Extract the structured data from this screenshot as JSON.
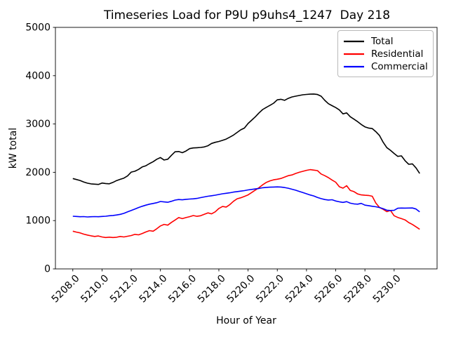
{
  "figure": {
    "title": "Timeseries Load for P9U p9uhs4_1247  Day 218",
    "xlabel": "Hour of Year",
    "ylabel": "kW total",
    "background": "#ffffff"
  },
  "legend": {
    "entries": [
      {
        "label": "Total",
        "color": "#000000"
      },
      {
        "label": "Residential",
        "color": "#ff0000"
      },
      {
        "label": "Commercial",
        "color": "#0000ff"
      }
    ]
  },
  "chart_data": {
    "type": "line",
    "title": "Timeseries Load for P9U p9uhs4_1247  Day 218",
    "xlabel": "Hour of Year",
    "ylabel": "kW total",
    "xlim": [
      5206.81,
      5232.94
    ],
    "ylim": [
      0,
      5000
    ],
    "grid": false,
    "legend_position": "upper right",
    "xticks": [
      5208,
      5210,
      5212,
      5214,
      5216,
      5218,
      5220,
      5222,
      5224,
      5226,
      5228,
      5230
    ],
    "xtick_labels": [
      "5208.0",
      "5210.0",
      "5212.0",
      "5214.0",
      "5216.0",
      "5218.0",
      "5220.0",
      "5222.0",
      "5224.0",
      "5226.0",
      "5228.0",
      "5230.0"
    ],
    "yticks": [
      0,
      1000,
      2000,
      3000,
      4000,
      5000
    ],
    "ytick_labels": [
      "0",
      "1000",
      "2000",
      "3000",
      "4000",
      "5000"
    ],
    "x": [
      5208.0,
      5208.25,
      5208.5,
      5208.75,
      5209.0,
      5209.25,
      5209.5,
      5209.75,
      5210.0,
      5210.25,
      5210.5,
      5210.75,
      5211.0,
      5211.25,
      5211.5,
      5211.75,
      5212.0,
      5212.25,
      5212.5,
      5212.75,
      5213.0,
      5213.25,
      5213.5,
      5213.75,
      5214.0,
      5214.25,
      5214.5,
      5214.75,
      5215.0,
      5215.25,
      5215.5,
      5215.75,
      5216.0,
      5216.25,
      5216.5,
      5216.75,
      5217.0,
      5217.25,
      5217.5,
      5217.75,
      5218.0,
      5218.25,
      5218.5,
      5218.75,
      5219.0,
      5219.25,
      5219.5,
      5219.75,
      5220.0,
      5220.25,
      5220.5,
      5220.75,
      5221.0,
      5221.25,
      5221.5,
      5221.75,
      5222.0,
      5222.25,
      5222.5,
      5222.75,
      5223.0,
      5223.25,
      5223.5,
      5223.75,
      5224.0,
      5224.25,
      5224.5,
      5224.75,
      5225.0,
      5225.25,
      5225.5,
      5225.75,
      5226.0,
      5226.25,
      5226.5,
      5226.75,
      5227.0,
      5227.25,
      5227.5,
      5227.75,
      5228.0,
      5228.25,
      5228.5,
      5228.75,
      5229.0,
      5229.25,
      5229.5,
      5229.75,
      5230.0,
      5230.25,
      5230.5,
      5230.75,
      5231.0,
      5231.25,
      5231.5,
      5231.75
    ],
    "series": [
      {
        "name": "Total",
        "color": "#000000",
        "values": [
          1870,
          1850,
          1830,
          1800,
          1775,
          1760,
          1755,
          1748,
          1778,
          1768,
          1762,
          1790,
          1828,
          1855,
          1880,
          1925,
          2005,
          2022,
          2060,
          2110,
          2135,
          2180,
          2220,
          2270,
          2305,
          2255,
          2270,
          2350,
          2425,
          2430,
          2405,
          2440,
          2490,
          2505,
          2508,
          2515,
          2525,
          2550,
          2598,
          2620,
          2638,
          2662,
          2688,
          2728,
          2770,
          2825,
          2880,
          2915,
          3010,
          3080,
          3150,
          3230,
          3300,
          3345,
          3385,
          3430,
          3500,
          3512,
          3490,
          3530,
          3560,
          3575,
          3590,
          3605,
          3612,
          3618,
          3620,
          3610,
          3575,
          3490,
          3420,
          3380,
          3340,
          3290,
          3210,
          3230,
          3150,
          3100,
          3050,
          2990,
          2940,
          2915,
          2905,
          2840,
          2760,
          2620,
          2510,
          2455,
          2390,
          2330,
          2340,
          2240,
          2165,
          2175,
          2090,
          1975
        ]
      },
      {
        "name": "Residential",
        "color": "#ff0000",
        "values": [
          780,
          762,
          745,
          720,
          700,
          685,
          672,
          682,
          662,
          650,
          657,
          650,
          655,
          672,
          662,
          676,
          690,
          715,
          705,
          732,
          765,
          792,
          780,
          832,
          890,
          922,
          905,
          962,
          1012,
          1062,
          1040,
          1062,
          1082,
          1105,
          1088,
          1100,
          1130,
          1160,
          1140,
          1182,
          1252,
          1292,
          1280,
          1332,
          1400,
          1452,
          1472,
          1502,
          1532,
          1582,
          1632,
          1682,
          1742,
          1790,
          1822,
          1845,
          1856,
          1872,
          1900,
          1930,
          1945,
          1975,
          2000,
          2020,
          2040,
          2055,
          2045,
          2035,
          1965,
          1930,
          1890,
          1840,
          1795,
          1700,
          1672,
          1722,
          1625,
          1600,
          1552,
          1532,
          1525,
          1520,
          1505,
          1360,
          1272,
          1232,
          1185,
          1210,
          1100,
          1065,
          1040,
          1015,
          960,
          920,
          870,
          820
        ]
      },
      {
        "name": "Commercial",
        "color": "#0000ff",
        "values": [
          1090,
          1086,
          1080,
          1083,
          1076,
          1080,
          1083,
          1080,
          1086,
          1090,
          1100,
          1106,
          1116,
          1130,
          1150,
          1180,
          1210,
          1240,
          1270,
          1296,
          1320,
          1340,
          1355,
          1370,
          1395,
          1386,
          1380,
          1400,
          1425,
          1436,
          1430,
          1440,
          1446,
          1450,
          1460,
          1476,
          1490,
          1505,
          1515,
          1526,
          1540,
          1555,
          1565,
          1576,
          1590,
          1600,
          1610,
          1620,
          1635,
          1645,
          1655,
          1666,
          1680,
          1688,
          1692,
          1695,
          1698,
          1695,
          1685,
          1670,
          1650,
          1630,
          1605,
          1580,
          1555,
          1530,
          1510,
          1480,
          1455,
          1436,
          1426,
          1432,
          1406,
          1390,
          1376,
          1392,
          1360,
          1346,
          1340,
          1356,
          1320,
          1310,
          1296,
          1286,
          1270,
          1245,
          1215,
          1210,
          1212,
          1256,
          1260,
          1258,
          1260,
          1262,
          1240,
          1180
        ]
      }
    ]
  }
}
